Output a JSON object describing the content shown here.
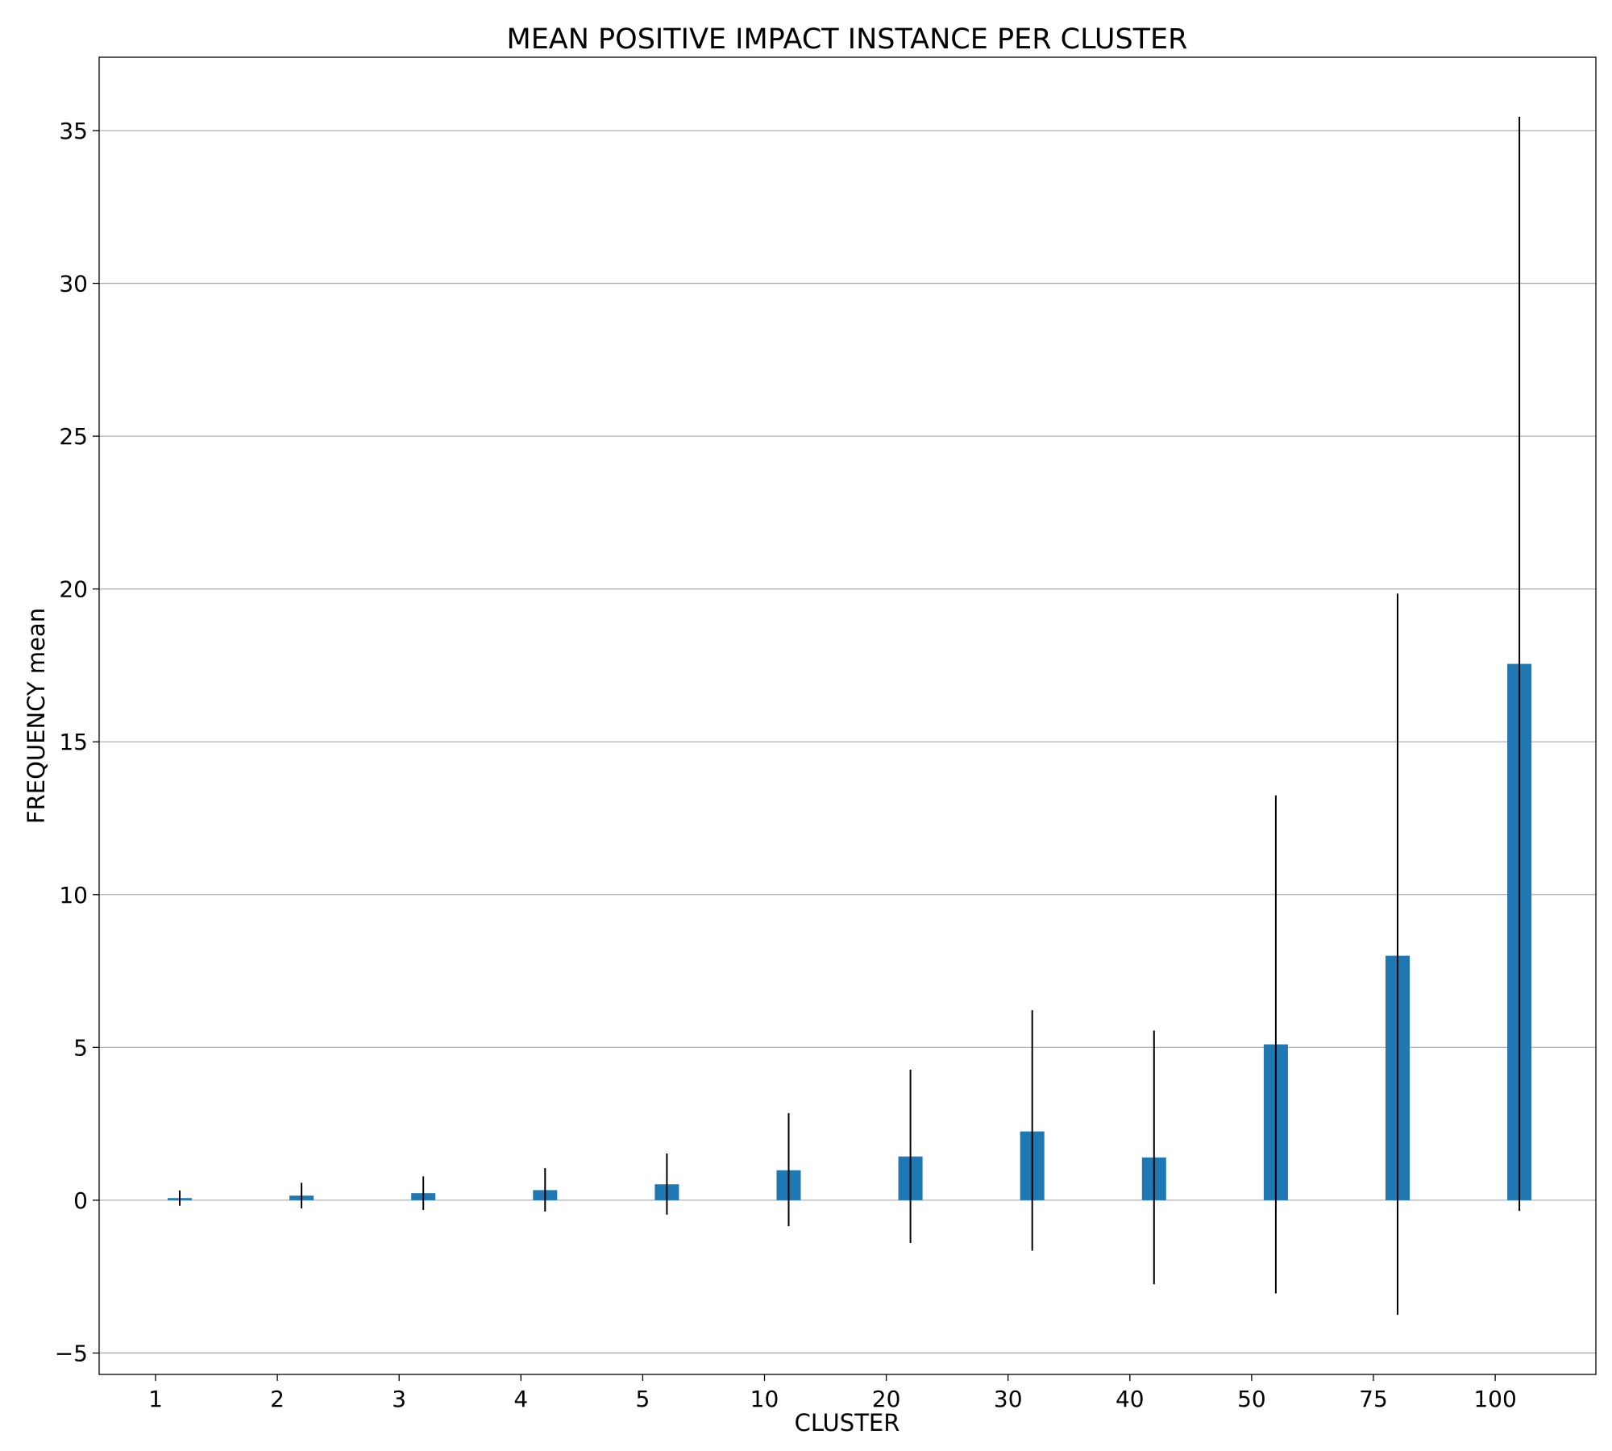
{
  "chart_data": {
    "type": "bar",
    "title": "MEAN POSITIVE IMPACT INSTANCE PER CLUSTER",
    "xlabel": "CLUSTER",
    "ylabel": "FREQUENCY mean",
    "categories": [
      "1",
      "2",
      "3",
      "4",
      "5",
      "10",
      "20",
      "30",
      "40",
      "50",
      "75",
      "100"
    ],
    "values": [
      0.07,
      0.15,
      0.23,
      0.33,
      0.52,
      0.98,
      1.43,
      2.25,
      1.4,
      5.1,
      8.0,
      17.55
    ],
    "error_low": [
      -0.18,
      -0.27,
      -0.32,
      -0.37,
      -0.47,
      -0.85,
      -1.4,
      -1.65,
      -2.75,
      -3.05,
      -3.75,
      -0.35
    ],
    "error_high": [
      0.32,
      0.57,
      0.78,
      1.05,
      1.53,
      2.85,
      4.27,
      6.22,
      5.55,
      13.25,
      19.85,
      35.45
    ],
    "ylim": [
      -5.7,
      37.4
    ],
    "yticks": [
      -5,
      0,
      5,
      10,
      15,
      20,
      25,
      30,
      35
    ],
    "ytick_labels": [
      "−5",
      "0",
      "5",
      "10",
      "15",
      "20",
      "25",
      "30",
      "35"
    ],
    "grid": "horizontal",
    "bar_color": "#1f77b4",
    "error_color": "#000000",
    "gridline_color": "#b0b0b0"
  }
}
